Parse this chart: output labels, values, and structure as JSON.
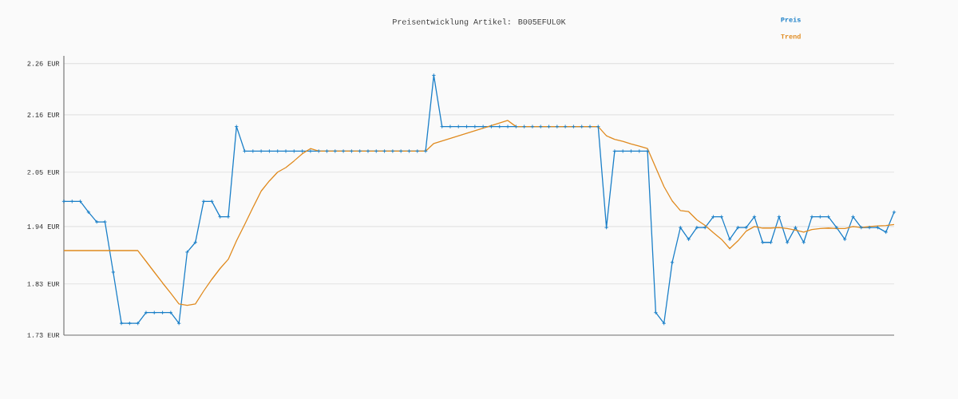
{
  "chart_data": {
    "type": "line",
    "title": "Preisentwicklung Artikel: B005EFUL0K",
    "categories": [
      null,
      null,
      null,
      null,
      null,
      null,
      null,
      null,
      null,
      null,
      null,
      null,
      null,
      null,
      null,
      null,
      null,
      null,
      null,
      null,
      null,
      null,
      null,
      null,
      null,
      null,
      null,
      null,
      null,
      null,
      null,
      null,
      null,
      null,
      null,
      null,
      null,
      null,
      null,
      null,
      null,
      null,
      null,
      null,
      null,
      null,
      null,
      null,
      null,
      null,
      null,
      null,
      null,
      null,
      null,
      null,
      null,
      null,
      null,
      null,
      null,
      null,
      null,
      null,
      null,
      null,
      null,
      null,
      null,
      null,
      null,
      null,
      null,
      null,
      null,
      null,
      null,
      null,
      null,
      null,
      null,
      null,
      null,
      null,
      null,
      null,
      null,
      null,
      null,
      null,
      null,
      null,
      null,
      null,
      null,
      null,
      null,
      null,
      null,
      null,
      null,
      null
    ],
    "series": [
      {
        "name": "Preis",
        "color": "#1a7fc8",
        "marker": "cross",
        "values": [
          1.991,
          1.991,
          1.991,
          1.97,
          1.951,
          1.951,
          1.853,
          1.753,
          1.753,
          1.753,
          1.774,
          1.774,
          1.774,
          1.774,
          1.753,
          1.892,
          1.911,
          1.991,
          1.991,
          1.961,
          1.961,
          2.137,
          2.089,
          2.089,
          2.089,
          2.089,
          2.089,
          2.089,
          2.089,
          2.089,
          2.089,
          2.089,
          2.089,
          2.089,
          2.089,
          2.089,
          2.089,
          2.089,
          2.089,
          2.089,
          2.089,
          2.089,
          2.089,
          2.089,
          2.089,
          2.237,
          2.137,
          2.137,
          2.137,
          2.137,
          2.137,
          2.137,
          2.137,
          2.137,
          2.137,
          2.137,
          2.137,
          2.137,
          2.137,
          2.137,
          2.137,
          2.137,
          2.137,
          2.137,
          2.137,
          2.137,
          1.94,
          2.089,
          2.089,
          2.089,
          2.089,
          2.089,
          1.774,
          1.753,
          1.872,
          1.94,
          1.917,
          1.94,
          1.94,
          1.961,
          1.961,
          1.917,
          1.94,
          1.94,
          1.961,
          1.911,
          1.911,
          1.961,
          1.911,
          1.94,
          1.911,
          1.961,
          1.961,
          1.961,
          1.94,
          1.917,
          1.961,
          1.94,
          1.94,
          1.94,
          1.931,
          1.97
        ]
      },
      {
        "name": "Trend",
        "color": "#e08a1e",
        "marker": "none",
        "values": [
          1.895,
          1.895,
          1.895,
          1.895,
          1.895,
          1.895,
          1.895,
          1.895,
          1.895,
          1.895,
          1.874,
          1.853,
          1.832,
          1.812,
          1.791,
          1.788,
          1.791,
          1.816,
          1.839,
          1.86,
          1.878,
          1.914,
          1.946,
          1.979,
          2.011,
          2.031,
          2.048,
          2.057,
          2.07,
          2.084,
          2.094,
          2.089,
          2.089,
          2.089,
          2.089,
          2.089,
          2.089,
          2.089,
          2.089,
          2.089,
          2.089,
          2.089,
          2.089,
          2.089,
          2.089,
          2.104,
          2.109,
          2.114,
          2.119,
          2.124,
          2.129,
          2.134,
          2.139,
          2.144,
          2.149,
          2.137,
          2.137,
          2.137,
          2.137,
          2.137,
          2.137,
          2.137,
          2.137,
          2.137,
          2.137,
          2.137,
          2.119,
          2.112,
          2.108,
          2.103,
          2.099,
          2.094,
          2.057,
          2.02,
          1.992,
          1.973,
          1.971,
          1.955,
          1.944,
          1.93,
          1.917,
          1.899,
          1.914,
          1.933,
          1.942,
          1.939,
          1.939,
          1.94,
          1.938,
          1.935,
          1.931,
          1.936,
          1.938,
          1.939,
          1.938,
          1.938,
          1.942,
          1.94,
          1.942,
          1.943,
          1.944,
          1.946
        ]
      }
    ],
    "ylim": [
      1.73,
      2.275
    ],
    "yticks": [
      {
        "value": 1.73,
        "label": "1.73 EUR"
      },
      {
        "value": 1.83,
        "label": "1.83 EUR"
      },
      {
        "value": 1.942,
        "label": "1.94 EUR"
      },
      {
        "value": 2.048,
        "label": "2.05 EUR"
      },
      {
        "value": 2.16,
        "label": "2.16 EUR"
      },
      {
        "value": 2.26,
        "label": "2.26 EUR"
      }
    ],
    "grid": "y",
    "legend": "top right"
  }
}
